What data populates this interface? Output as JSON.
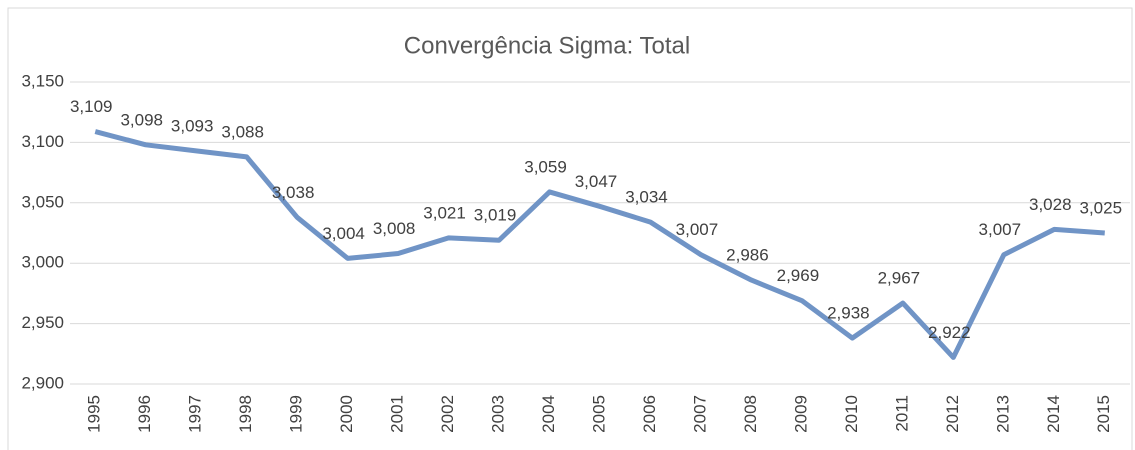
{
  "chart_data": {
    "type": "line",
    "title": "Convergência Sigma: Total",
    "categories": [
      "1995",
      "1996",
      "1997",
      "1998",
      "1999",
      "2000",
      "2001",
      "2002",
      "2003",
      "2004",
      "2005",
      "2006",
      "2007",
      "2008",
      "2009",
      "2010",
      "2011",
      "2012",
      "2013",
      "2014",
      "2015"
    ],
    "series": [
      {
        "name": "Total",
        "color": "#7094c6",
        "values": [
          3.109,
          3.098,
          3.093,
          3.088,
          3.038,
          3.004,
          3.008,
          3.021,
          3.019,
          3.059,
          3.047,
          3.034,
          3.007,
          2.986,
          2.969,
          2.938,
          2.967,
          2.922,
          3.007,
          3.028,
          3.025
        ],
        "value_labels": [
          "3,109",
          "3,098",
          "3,093",
          "3,088",
          "3,038",
          "3,004",
          "3,008",
          "3,021",
          "3,019",
          "3,059",
          "3,047",
          "3,034",
          "3,007",
          "2,986",
          "2,969",
          "2,938",
          "2,967",
          "2,922",
          "3,007",
          "3,028",
          "3,025"
        ]
      }
    ],
    "ylim": [
      2.9,
      3.15
    ],
    "yticks": [
      {
        "value": 2.9,
        "label": "2,900"
      },
      {
        "value": 2.95,
        "label": "2,950"
      },
      {
        "value": 3.0,
        "label": "3,000"
      },
      {
        "value": 3.05,
        "label": "3,050"
      },
      {
        "value": 3.1,
        "label": "3,100"
      },
      {
        "value": 3.15,
        "label": "3,150"
      }
    ],
    "grid": true
  }
}
